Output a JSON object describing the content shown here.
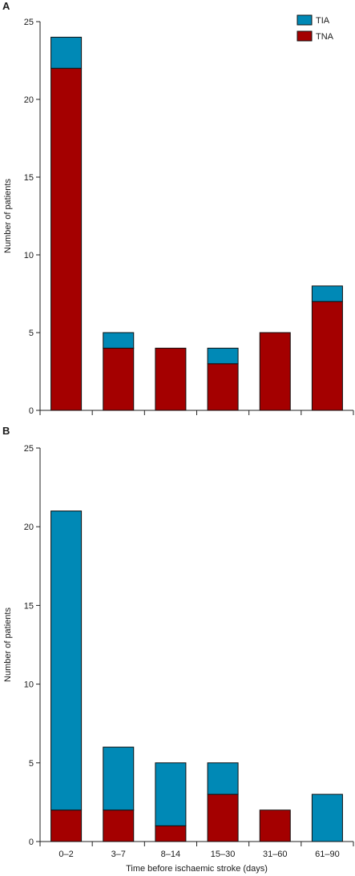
{
  "colors": {
    "tia": "#0089b6",
    "tna": "#a40000",
    "axis": "#222222"
  },
  "chart_data": [
    {
      "type": "bar",
      "stacked": true,
      "panel_label": "A",
      "title": "",
      "xlabel": "",
      "ylabel": "Number of patients",
      "ylim": [
        0,
        25
      ],
      "yticks": [
        0,
        5,
        10,
        15,
        20,
        25
      ],
      "grid": false,
      "categories": [
        "0–2",
        "3–7",
        "8–14",
        "15–30",
        "31–60",
        "61–90"
      ],
      "show_category_labels": false,
      "legend_position": "top-right",
      "series": [
        {
          "name": "TNA",
          "color": "#a40000",
          "values": [
            22,
            4,
            4,
            3,
            5,
            7
          ]
        },
        {
          "name": "TIA",
          "color": "#0089b6",
          "values": [
            2,
            1,
            0,
            1,
            0,
            1
          ]
        }
      ],
      "legend": [
        {
          "name": "TIA",
          "color": "#0089b6"
        },
        {
          "name": "TNA",
          "color": "#a40000"
        }
      ]
    },
    {
      "type": "bar",
      "stacked": true,
      "panel_label": "B",
      "title": "",
      "xlabel": "Time before ischaemic stroke (days)",
      "ylabel": "Number of patients",
      "ylim": [
        0,
        25
      ],
      "yticks": [
        0,
        5,
        10,
        15,
        20,
        25
      ],
      "grid": false,
      "categories": [
        "0–2",
        "3–7",
        "8–14",
        "15–30",
        "31–60",
        "61–90"
      ],
      "show_category_labels": true,
      "series": [
        {
          "name": "TNA",
          "color": "#a40000",
          "values": [
            2,
            2,
            1,
            3,
            2,
            0
          ]
        },
        {
          "name": "TIA",
          "color": "#0089b6",
          "values": [
            19,
            4,
            4,
            2,
            0,
            3
          ]
        }
      ]
    }
  ]
}
